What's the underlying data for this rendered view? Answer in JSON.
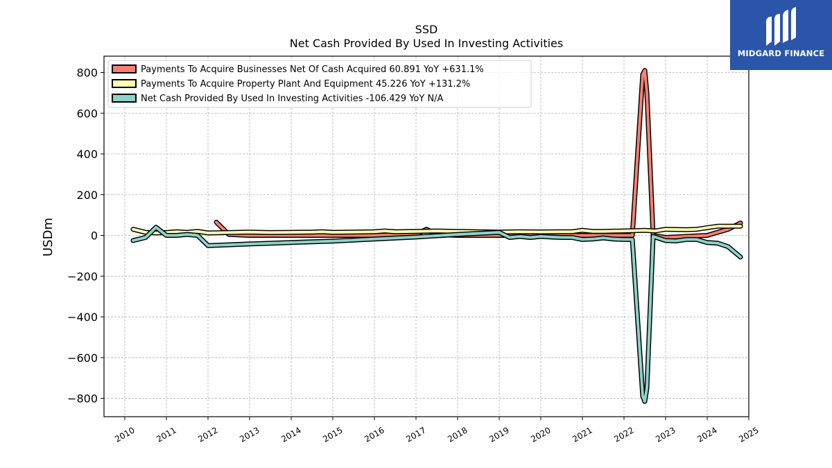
{
  "brand": {
    "name": "MIDGARD FINANCE",
    "background": "#2a55a8"
  },
  "chart_data": {
    "type": "line",
    "title": "SSD",
    "subtitle": "Net Cash Provided By Used In Investing Activities",
    "ylabel": "USDm",
    "xlabel": "",
    "xlim": [
      2009.5,
      2025.0
    ],
    "ylim": [
      -890,
      880
    ],
    "xticks": [
      2010,
      2011,
      2012,
      2013,
      2014,
      2015,
      2016,
      2017,
      2018,
      2019,
      2020,
      2021,
      2022,
      2023,
      2024,
      2025
    ],
    "yticks": [
      -800,
      -600,
      -400,
      -200,
      0,
      200,
      400,
      600,
      800
    ],
    "ytick_labels": [
      "−800",
      "−600",
      "−400",
      "−200",
      "0",
      "200",
      "400",
      "600",
      "800"
    ],
    "grid": true,
    "legend_position": "top-left",
    "series": [
      {
        "name": "Payments To Acquire Businesses Net Of Cash Acquired  60.891 YoY +631.1%",
        "color": "#fa8072",
        "x": [
          2012.2,
          2012.5,
          2013.0,
          2014.0,
          2015.0,
          2016.0,
          2017.0,
          2017.25,
          2017.5,
          2018.0,
          2019.0,
          2020.0,
          2021.0,
          2022.0,
          2022.2,
          2022.45,
          2022.5,
          2022.55,
          2022.7,
          2023.0,
          2023.5,
          2024.0,
          2024.5,
          2024.8
        ],
        "y": [
          65,
          5,
          0,
          0,
          0,
          0,
          5,
          30,
          5,
          0,
          0,
          0,
          0,
          0,
          0,
          790,
          810,
          700,
          0,
          -10,
          -5,
          0,
          30,
          61
        ]
      },
      {
        "name": "Payments To Acquire Property Plant And Equipment  45.226 YoY +131.2%",
        "color": "#ffffb3",
        "x": [
          2010.2,
          2010.5,
          2010.75,
          2011.0,
          2011.25,
          2011.5,
          2011.75,
          2012.0,
          2012.5,
          2013.0,
          2013.5,
          2014.0,
          2014.5,
          2014.75,
          2015.0,
          2015.5,
          2016.0,
          2016.25,
          2016.5,
          2017.0,
          2017.5,
          2018.0,
          2018.5,
          2019.0,
          2019.5,
          2020.0,
          2020.5,
          2020.75,
          2021.0,
          2021.25,
          2021.5,
          2022.0,
          2022.5,
          2022.75,
          2023.0,
          2023.5,
          2023.75,
          2024.0,
          2024.25,
          2024.5,
          2024.8
        ],
        "y": [
          30,
          15,
          12,
          14,
          18,
          15,
          20,
          12,
          14,
          16,
          14,
          15,
          16,
          18,
          15,
          16,
          18,
          22,
          18,
          20,
          22,
          20,
          18,
          16,
          18,
          17,
          18,
          18,
          25,
          20,
          20,
          22,
          25,
          22,
          30,
          28,
          30,
          38,
          45,
          45,
          45
        ]
      },
      {
        "name": "Net Cash Provided By Used In Investing Activities  -106.429 YoY N/A",
        "color": "#8dd3c7",
        "x": [
          2010.2,
          2010.5,
          2010.75,
          2011.0,
          2011.25,
          2011.5,
          2011.75,
          2012.0,
          2013.0,
          2014.0,
          2015.0,
          2016.0,
          2017.0,
          2018.0,
          2019.0,
          2019.25,
          2019.5,
          2019.75,
          2020.0,
          2020.25,
          2020.5,
          2020.75,
          2021.0,
          2021.25,
          2021.5,
          2021.75,
          2022.0,
          2022.2,
          2022.45,
          2022.5,
          2022.55,
          2022.7,
          2023.0,
          2023.25,
          2023.5,
          2023.75,
          2024.0,
          2024.25,
          2024.5,
          2024.8
        ],
        "y": [
          -25,
          -10,
          40,
          0,
          0,
          5,
          0,
          -50,
          -42,
          -35,
          -28,
          -18,
          -8,
          5,
          15,
          -10,
          -5,
          -10,
          -5,
          -8,
          -10,
          -10,
          -20,
          -18,
          -12,
          -18,
          -20,
          -20,
          -790,
          -815,
          -750,
          -5,
          -25,
          -27,
          -20,
          -20,
          -35,
          -38,
          -55,
          -106
        ]
      }
    ]
  }
}
